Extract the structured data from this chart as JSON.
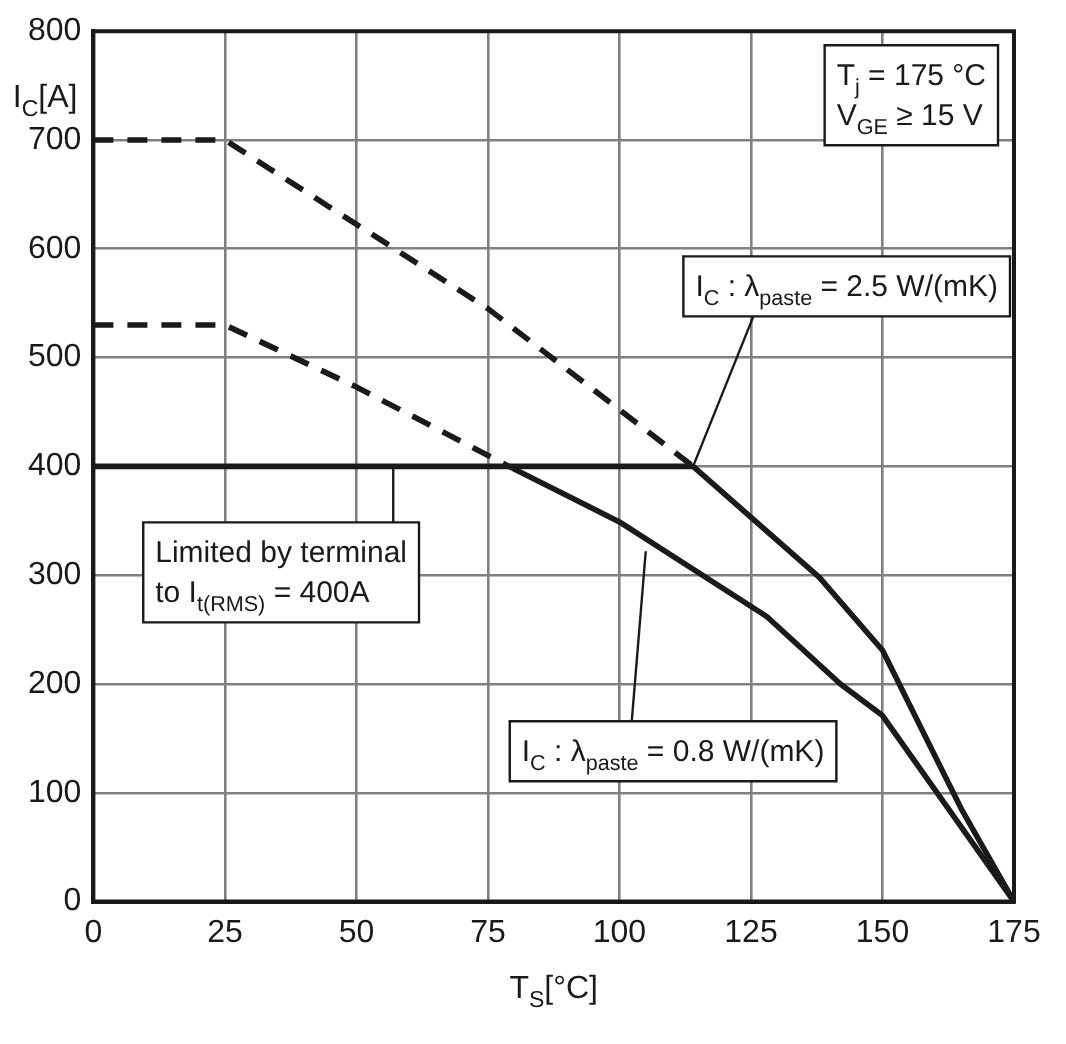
{
  "chart_data": {
    "type": "line",
    "xlabel": "T$_{S}$[°C]",
    "ylabel": "I$_{C}$[A]",
    "xlim": [
      0,
      175
    ],
    "xticks": [
      0,
      25,
      50,
      75,
      100,
      125,
      150,
      175
    ],
    "ylim": [
      0,
      800
    ],
    "yticks": [
      0,
      100,
      200,
      300,
      400,
      500,
      600,
      700,
      800
    ],
    "grid": true,
    "legend": false,
    "marker": "none",
    "series": [
      {
        "color": "#1a1a1a",
        "line_style": "dashed",
        "x": [
          0,
          25,
          75,
          114
        ],
        "values": [
          700,
          700,
          545,
          400
        ]
      },
      {
        "color": "#1a1a1a",
        "line_style": "solid",
        "x": [
          114,
          138,
          150,
          165,
          175
        ],
        "values": [
          400,
          298,
          231,
          85,
          0
        ]
      },
      {
        "color": "#1a1a1a",
        "line_style": "dashed",
        "x": [
          0,
          25,
          50,
          79
        ],
        "values": [
          530,
          530,
          473,
          400
        ]
      },
      {
        "color": "#1a1a1a",
        "line_style": "solid",
        "x": [
          79,
          100,
          128,
          142,
          150,
          175
        ],
        "values": [
          400,
          349,
          262,
          200,
          171,
          0
        ]
      },
      {
        "color": "#1a1a1a",
        "line_style": "solid",
        "x": [
          0,
          114
        ],
        "values": [
          400,
          400
        ]
      }
    ],
    "annotations": [
      "T$_{j}$ = 175 °C\nV$_{GE}$ ≥ 15 V",
      {
        "text": "I$_{C}$ : λ$_{paste}$ = 2.5 W/(mK)",
        "x": 114,
        "y": 400
      },
      {
        "text": "I$_{C}$ : λ$_{paste}$ = 0.8 W/(mK)",
        "x": 105,
        "y": 322
      },
      {
        "text": "Limited by terminal\nto I$_{t(RMS)}$ = 400A",
        "x": 57,
        "y": 400
      }
    ]
  }
}
